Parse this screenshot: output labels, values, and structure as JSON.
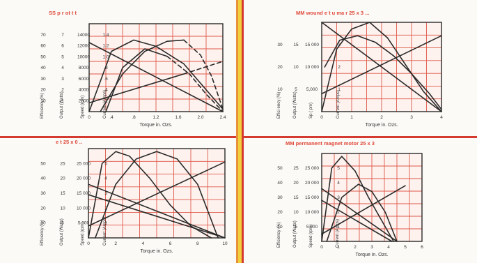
{
  "colors": {
    "grid": "#e0584a",
    "frame": "#2a2a2a",
    "curve": "#2a2a2a",
    "highlight": "#f5d3cc",
    "label": "#333333",
    "title": "#e0483a",
    "divider_orange": "#e8903a",
    "divider_yellow": "#f2cf3c",
    "divider_red": "#d43a30"
  },
  "chart_data": [
    {
      "type": "line",
      "title": "SS p   r  ot  t  t",
      "xlabel": "Torque in. Ozs.",
      "xlim": [
        0,
        2.4
      ],
      "ylim": [
        0,
        70
      ],
      "x_ticks": [
        "0",
        ".4",
        ".8",
        "1.2",
        "1.6",
        "2.0",
        "2.4"
      ],
      "axis_headers": [
        "Efficiency (%)",
        "Output (Watts)",
        "Speed (rpm)",
        "Current (Amps)"
      ],
      "columns": [
        [
          "70",
          "60",
          "50",
          "40",
          "30",
          "20",
          "10"
        ],
        [
          "7",
          "6",
          "5",
          "4",
          "3",
          "2",
          "1"
        ],
        [
          "14000",
          "12000",
          "10000",
          "8000",
          "6000",
          "4000",
          "2000"
        ],
        [
          "1.4",
          "1.2",
          "1.0",
          ".8",
          ".6",
          ".4",
          ".2"
        ]
      ],
      "series": [
        {
          "style": "solid",
          "x": [
            0,
            2.4
          ],
          "y": [
            55,
            0
          ]
        },
        {
          "style": "solid",
          "x": [
            0,
            0.4,
            0.8,
            1.2,
            1.7,
            2.4
          ],
          "y": [
            0,
            48,
            57,
            52,
            38,
            2
          ]
        },
        {
          "style": "solid",
          "x": [
            0.2,
            0.6,
            1.0,
            1.4,
            1.7
          ],
          "y": [
            0,
            30,
            48,
            56,
            57
          ]
        },
        {
          "style": "dashed",
          "x": [
            1.7,
            2.0,
            2.2,
            2.4
          ],
          "y": [
            57,
            45,
            28,
            2
          ]
        },
        {
          "style": "solid",
          "x": [
            0,
            1.7
          ],
          "y": [
            7,
            30
          ]
        },
        {
          "style": "dashed",
          "x": [
            1.7,
            2.4
          ],
          "y": [
            30,
            40
          ]
        },
        {
          "style": "solid",
          "x": [
            0.3,
            0.6,
            1.0,
            1.4
          ],
          "y": [
            0,
            35,
            50,
            44
          ]
        },
        {
          "style": "dashed",
          "x": [
            1.4,
            1.8,
            2.1,
            2.4
          ],
          "y": [
            44,
            30,
            14,
            0
          ]
        }
      ]
    },
    {
      "type": "line",
      "title": "MM wound  e  t  u  ma  r  25 x 3 ...",
      "xlabel": "Torque in. Ozs.",
      "xlim": [
        0,
        4
      ],
      "ylim": [
        0,
        40
      ],
      "x_ticks": [
        "0",
        "1",
        "2",
        "3",
        "4"
      ],
      "axis_headers": [
        "Effici ency (%)",
        "Output (Watts)",
        "Sp ( pm)",
        "Current (Amps)"
      ],
      "columns": [
        [
          "30",
          "20",
          "10"
        ],
        [
          "15",
          "10",
          "5"
        ],
        [
          "15 000",
          "10 000",
          "5,000"
        ],
        [
          "3",
          "2",
          "1"
        ]
      ],
      "series": [
        {
          "style": "solid",
          "x": [
            0,
            4
          ],
          "y": [
            40,
            0
          ]
        },
        {
          "style": "solid",
          "x": [
            0,
            0.5,
            1.0,
            1.6,
            2.2,
            2.8,
            3.4,
            4
          ],
          "y": [
            0,
            28,
            37,
            40,
            33,
            21,
            9,
            0
          ]
        },
        {
          "style": "solid",
          "x": [
            0,
            4
          ],
          "y": [
            8,
            34
          ]
        },
        {
          "style": "solid",
          "x": [
            0.1,
            0.6,
            1.2,
            1.8,
            2.4,
            3.0,
            3.6,
            4.0
          ],
          "y": [
            20,
            32,
            34,
            31,
            25,
            17,
            8,
            1
          ]
        }
      ]
    },
    {
      "type": "line",
      "title": "  e    t 25 x 0 ..",
      "xlabel": "Torque in. Ozs.",
      "xlim": [
        0,
        10
      ],
      "ylim": [
        0,
        60
      ],
      "x_ticks": [
        "0",
        "2",
        "4",
        "6",
        "8",
        "10"
      ],
      "axis_headers": [
        "Efficiency (%)",
        "Output (Watts)",
        "Speed (rpm)",
        "Current (Amps)"
      ],
      "columns": [
        [
          "50",
          "40",
          "30",
          "20",
          "10"
        ],
        [
          "25",
          "20",
          "15",
          "10",
          "5"
        ],
        [
          "25 000",
          "20 000",
          "15 000",
          "10 000",
          "5 000"
        ],
        [
          "5",
          "4",
          "3",
          "2",
          "1"
        ]
      ],
      "series": [
        {
          "style": "solid",
          "x": [
            0,
            10
          ],
          "y": [
            36,
            0
          ]
        },
        {
          "style": "solid",
          "x": [
            0,
            1.0,
            2.0,
            3.0,
            4.5,
            6.0,
            7.5,
            9.0
          ],
          "y": [
            0,
            50,
            58,
            55,
            40,
            22,
            8,
            0
          ]
        },
        {
          "style": "solid",
          "x": [
            0.5,
            2.0,
            3.5,
            5.0,
            6.5,
            8.0,
            9.5
          ],
          "y": [
            0,
            36,
            53,
            58,
            53,
            36,
            0
          ]
        },
        {
          "style": "solid",
          "x": [
            0,
            10
          ],
          "y": [
            8,
            51
          ]
        },
        {
          "style": "solid",
          "x": [
            0,
            10
          ],
          "y": [
            29,
            0
          ]
        }
      ]
    },
    {
      "type": "line",
      "title": "MM permanent magnet motor 25 x 3",
      "xlabel": "Torque in. Ozs.",
      "xlim": [
        0,
        6
      ],
      "ylim": [
        0,
        60
      ],
      "x_ticks": [
        "0",
        "1",
        "2",
        "3",
        "4",
        "5",
        "6"
      ],
      "axis_headers": [
        "Efficiency (%)",
        "Output (Watts)",
        "Speed (rpm)",
        "Current (Amps)"
      ],
      "columns": [
        [
          "50",
          "40",
          "30",
          "20",
          "10"
        ],
        [
          "25",
          "20",
          "15",
          "10",
          "5"
        ],
        [
          "25 000",
          "20 000",
          "15 000",
          "10 000",
          "5 000"
        ],
        [
          "5",
          "4",
          "3",
          "2",
          "1"
        ]
      ],
      "series": [
        {
          "style": "solid",
          "x": [
            0,
            0.6,
            1.2,
            2.0,
            2.8,
            3.6,
            4.3
          ],
          "y": [
            0,
            50,
            58,
            48,
            30,
            14,
            0
          ]
        },
        {
          "style": "solid",
          "x": [
            0.3,
            1.2,
            2.2,
            3.0,
            3.8,
            4.5
          ],
          "y": [
            0,
            30,
            39,
            34,
            20,
            0
          ]
        },
        {
          "style": "solid",
          "x": [
            0,
            4.5
          ],
          "y": [
            36,
            0
          ]
        },
        {
          "style": "solid",
          "x": [
            0,
            5.0
          ],
          "y": [
            5,
            38
          ]
        },
        {
          "style": "solid",
          "x": [
            0,
            4.2
          ],
          "y": [
            28,
            0
          ]
        }
      ]
    }
  ]
}
